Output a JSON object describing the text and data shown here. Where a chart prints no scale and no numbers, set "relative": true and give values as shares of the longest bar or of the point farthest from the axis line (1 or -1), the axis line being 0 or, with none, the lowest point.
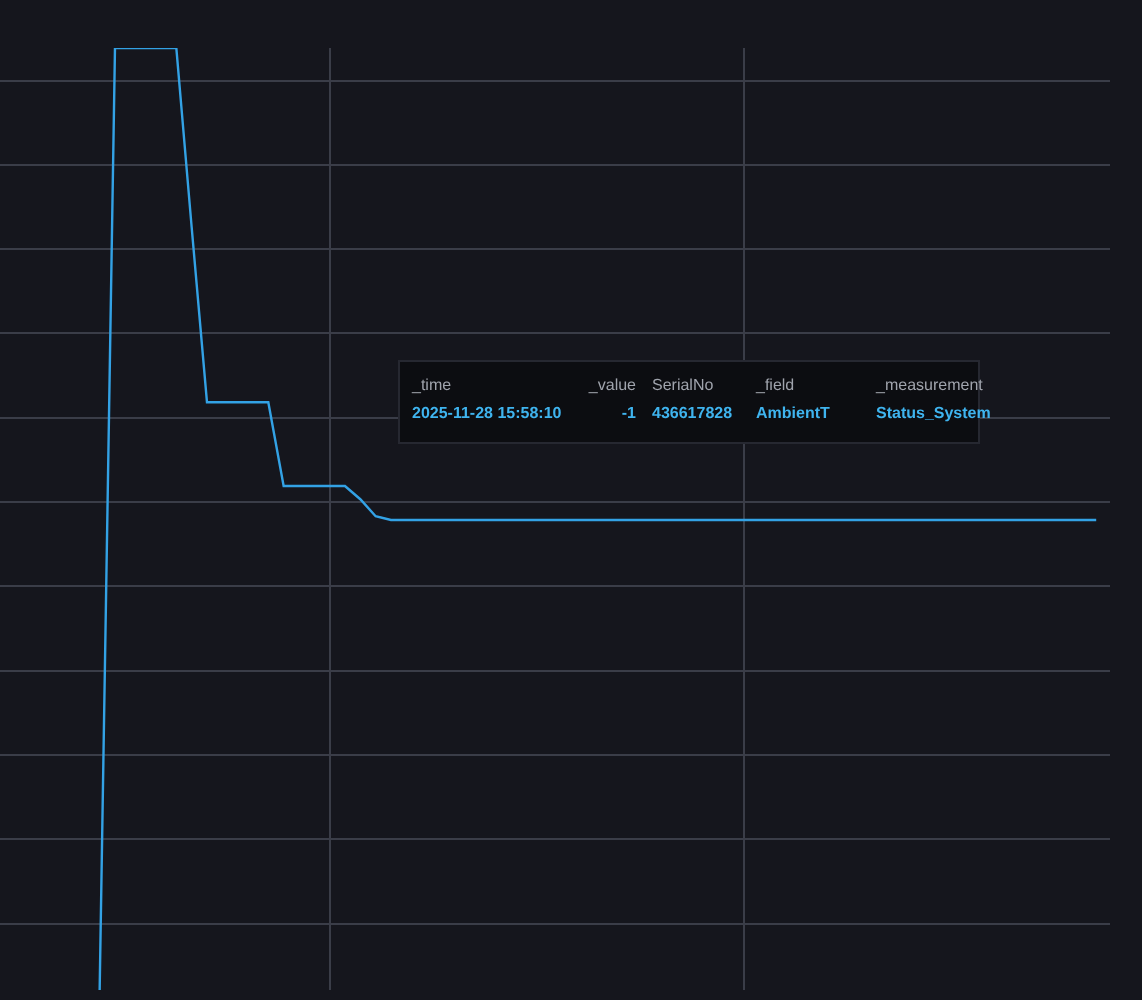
{
  "chart_data": {
    "type": "line",
    "relative": true,
    "grid": true,
    "tick_labels": false,
    "color": "#33a2e5",
    "categories": [
      null,
      null,
      null,
      null,
      null,
      null,
      null,
      null,
      null,
      null,
      null,
      null,
      null,
      null,
      null,
      null,
      null,
      null,
      null,
      null,
      null,
      null,
      null,
      null,
      null,
      null,
      null,
      null,
      null,
      null,
      null,
      null,
      null,
      null,
      null,
      null,
      null,
      null,
      null,
      null,
      null,
      null,
      null,
      null,
      null,
      null,
      null,
      null,
      null,
      null,
      null,
      null,
      null,
      null,
      null,
      null,
      null,
      null,
      null,
      null,
      null,
      null,
      null,
      null,
      null,
      null,
      null,
      null,
      null
    ],
    "values": [
      null,
      null,
      null,
      0,
      1,
      1,
      1,
      1,
      1,
      0.81,
      0.624,
      0.624,
      0.624,
      0.624,
      0.624,
      0.535,
      0.535,
      0.535,
      0.535,
      0.535,
      0.521,
      0.503,
      0.499,
      0.499,
      0.499,
      0.499,
      0.499,
      0.499,
      0.499,
      0.499,
      0.499,
      0.499,
      0.499,
      0.499,
      0.499,
      0.499,
      0.499,
      0.499,
      0.499,
      0.499,
      0.499,
      0.499,
      0.499,
      0.499,
      0.499,
      0.499,
      0.499,
      0.499,
      0.499,
      0.499,
      0.499,
      0.499,
      0.499,
      0.499,
      0.499,
      0.499,
      0.499,
      0.499,
      0.499,
      0.499,
      0.499,
      0.499,
      0.499,
      0.499,
      0.499,
      0.499,
      0.499,
      0.499,
      0.499
    ],
    "annotations": [
      "_time",
      "_value",
      "SerialNo",
      "_field",
      "_measurement",
      "2025-11-28 15:58:10",
      "-1",
      "436617828",
      "AmbientT",
      "Status_System"
    ]
  }
}
